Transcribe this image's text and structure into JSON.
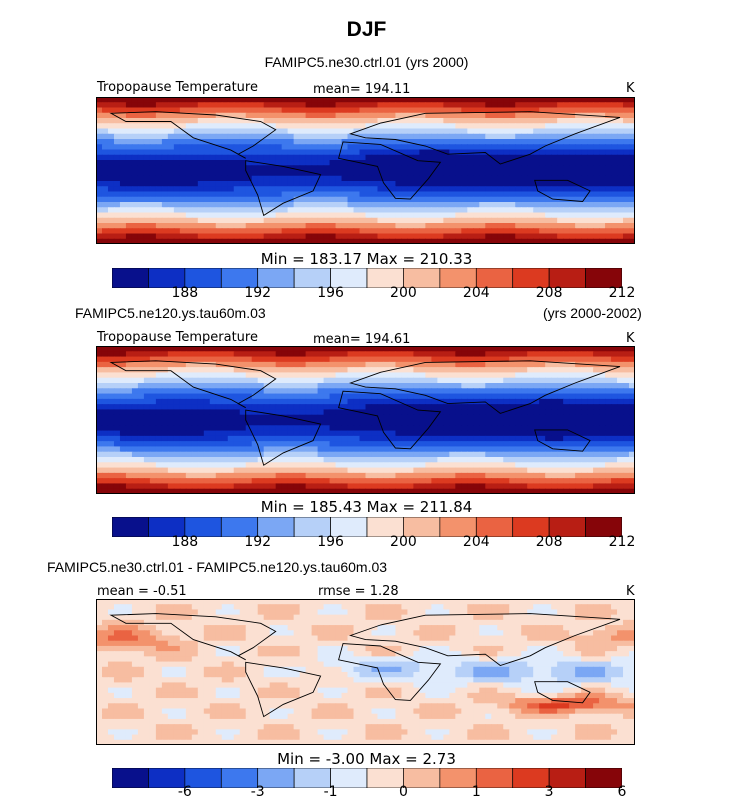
{
  "figure": {
    "title": "DJF"
  },
  "colors": {
    "scale": [
      "#08108c",
      "#0d2fc4",
      "#1e55e0",
      "#3d78ee",
      "#7ba7f4",
      "#b6d0f8",
      "#dfebfc",
      "#fbe0d2",
      "#f7bda1",
      "#f3926c",
      "#ea6342",
      "#dc3a20",
      "#b81e14",
      "#860509"
    ]
  },
  "chart_data": [
    {
      "type": "heatmap",
      "case": "FAMIPC5.ne30.ctrl.01 (yrs 2000)",
      "case_side": "",
      "variable": "Tropopause Temperature",
      "stat_left": "mean= 194.11",
      "stat_right": "",
      "units": "K",
      "min_max": "Min =  183.17  Max =  210.33",
      "colorbar_ticks": [
        "188",
        "192",
        "196",
        "200",
        "204",
        "208",
        "212"
      ],
      "field_mode": "abs",
      "min": 183.17,
      "max": 210.33,
      "mean": 194.11
    },
    {
      "type": "heatmap",
      "case": "FAMIPC5.ne120.ys.tau60m.03",
      "case_side": "(yrs 2000-2002)",
      "variable": "Tropopause Temperature",
      "stat_left": "mean= 194.61",
      "stat_right": "",
      "units": "K",
      "min_max": "Min =  185.43  Max =  211.84",
      "colorbar_ticks": [
        "188",
        "192",
        "196",
        "200",
        "204",
        "208",
        "212"
      ],
      "field_mode": "abs",
      "min": 185.43,
      "max": 211.84,
      "mean": 194.61
    },
    {
      "type": "heatmap",
      "case": "FAMIPC5.ne30.ctrl.01 - FAMIPC5.ne120.ys.tau60m.03",
      "case_side": "",
      "variable": "",
      "stat_left": "mean =   -0.51",
      "stat_right": "rmse =    1.28",
      "units": "K",
      "min_max": "Min =   -3.00  Max =     2.73",
      "colorbar_ticks": [
        "-6",
        "-3",
        "-1",
        "0",
        "1",
        "3",
        "6"
      ],
      "field_mode": "diff",
      "min": -3.0,
      "max": 2.73,
      "mean": -0.51
    }
  ]
}
